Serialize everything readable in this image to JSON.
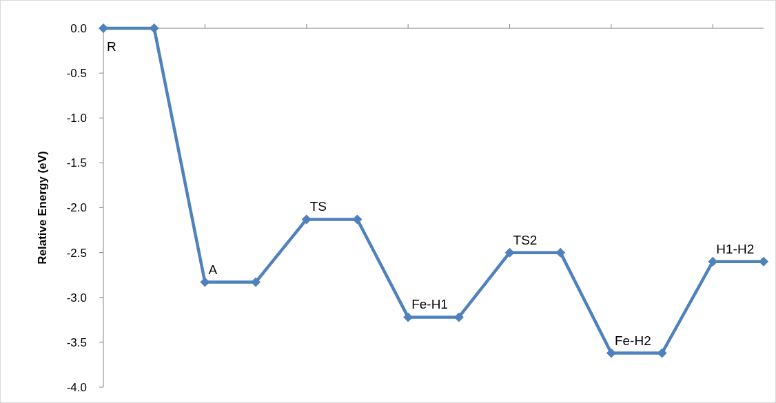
{
  "chart_data": {
    "type": "line",
    "ylabel": "Relative Energy (eV)",
    "categories": [
      null,
      null,
      null,
      null,
      null,
      null,
      null,
      null,
      null,
      null,
      null,
      null,
      null,
      null
    ],
    "series": [
      {
        "color": "#4f81bd",
        "values": [
          0,
          0,
          -2.83,
          -2.83,
          -2.13,
          -2.13,
          -3.22,
          -3.22,
          -2.5,
          -2.5,
          -3.62,
          -3.62,
          -2.6,
          -2.6
        ]
      }
    ],
    "ylim": [
      -4,
      0
    ],
    "yticks": [
      {
        "value": 0,
        "label": "0.0"
      },
      {
        "value": -0.5,
        "label": "-0.5"
      },
      {
        "value": -1,
        "label": "-1.0"
      },
      {
        "value": -1.5,
        "label": "-1.5"
      },
      {
        "value": -2,
        "label": "-2.0"
      },
      {
        "value": -2.5,
        "label": "-2.5"
      },
      {
        "value": -3,
        "label": "-3.0"
      },
      {
        "value": -3.5,
        "label": "-3.5"
      },
      {
        "value": -4,
        "label": "-4.0"
      }
    ],
    "grid": false,
    "marker": "diamond",
    "line_style": "solid",
    "annotations": [
      {
        "text": "R",
        "y": 0
      },
      {
        "text": "A",
        "y": -2.83
      },
      {
        "text": "TS",
        "y": -2.13
      },
      {
        "text": "Fe-H1",
        "y": -3.22
      },
      {
        "text": "TS2",
        "y": -2.5
      },
      {
        "text": "Fe-H2",
        "y": -3.62
      },
      {
        "text": "H1-H2",
        "y": -2.6
      }
    ]
  }
}
